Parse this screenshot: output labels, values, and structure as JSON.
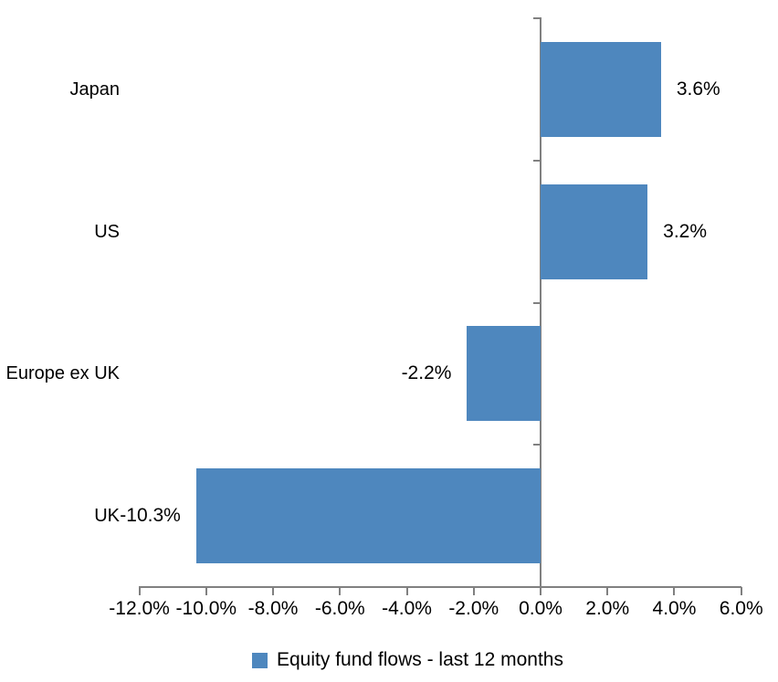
{
  "chart_data": {
    "type": "bar",
    "orientation": "horizontal",
    "title": "",
    "categories": [
      "Japan",
      "US",
      "Europe ex UK",
      "UK"
    ],
    "values": [
      3.6,
      3.2,
      -2.2,
      -10.3
    ],
    "data_labels": [
      "3.6%",
      "3.2%",
      "-2.2%",
      "-10.3%"
    ],
    "x_ticks": [
      -12,
      -10,
      -8,
      -6,
      -4,
      -2,
      0,
      2,
      4,
      6
    ],
    "x_tick_labels": [
      "-12.0%",
      "-10.0%",
      "-8.0%",
      "-6.0%",
      "-4.0%",
      "-2.0%",
      "0.0%",
      "2.0%",
      "4.0%",
      "6.0%"
    ],
    "xlim": [
      -12,
      6
    ],
    "grid": false,
    "legend": {
      "label": "Equity fund flows - last 12 months",
      "position": "bottom"
    },
    "colors": {
      "bar": "#4E87BE",
      "axis": "#808080",
      "text": "#000000"
    }
  }
}
